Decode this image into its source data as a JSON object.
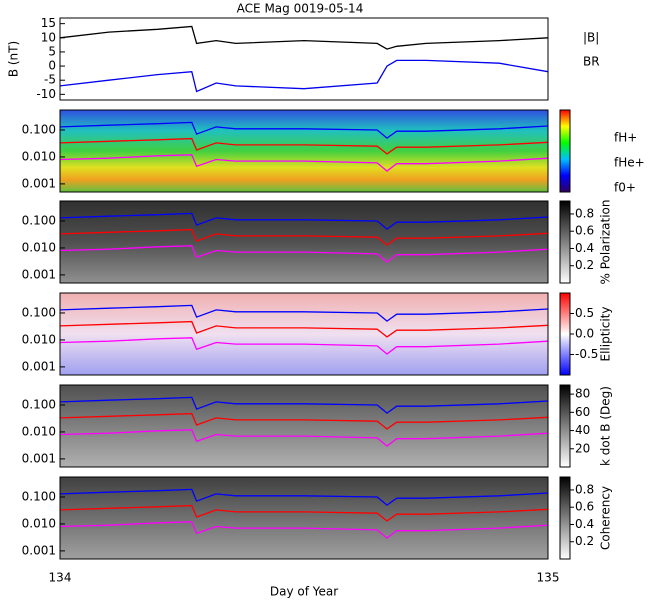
{
  "chart_data": [
    {
      "type": "line",
      "title": "ACE Mag 0019-05-14",
      "y_label": "B (nT)",
      "x": [
        134,
        134.1,
        134.2,
        134.27,
        134.28,
        134.32,
        134.36,
        134.5,
        134.65,
        134.67,
        134.69,
        134.75,
        134.9,
        135
      ],
      "series": [
        {
          "name": "|B|",
          "color": "#000000",
          "values": [
            10,
            12,
            13,
            14,
            8,
            9,
            8,
            9,
            8,
            6,
            7,
            8,
            9,
            10
          ]
        },
        {
          "name": "BR",
          "color": "#0000ee",
          "values": [
            -7,
            -5,
            -3,
            -2,
            -9,
            -6,
            -7,
            -8,
            -6,
            0,
            2,
            2,
            1,
            -2
          ]
        }
      ],
      "xlim": [
        134,
        135
      ],
      "ylim": [
        -12,
        17
      ],
      "yticks": [
        -10,
        -5,
        0,
        5,
        10,
        15
      ]
    },
    {
      "type": "spectrogram",
      "log_y": true,
      "x": [
        134,
        134.1,
        134.2,
        134.27,
        134.28,
        134.32,
        134.36,
        134.5,
        134.65,
        134.67,
        134.69,
        134.75,
        134.9,
        135
      ],
      "series": [
        {
          "name": "fH+",
          "color": "#0000ff",
          "values": [
            0.13,
            0.15,
            0.17,
            0.19,
            0.07,
            0.13,
            0.11,
            0.11,
            0.1,
            0.05,
            0.09,
            0.09,
            0.11,
            0.14
          ]
        },
        {
          "name": "fHe+",
          "color": "#ff0000",
          "values": [
            0.033,
            0.038,
            0.043,
            0.048,
            0.018,
            0.033,
            0.028,
            0.028,
            0.025,
            0.013,
            0.023,
            0.023,
            0.028,
            0.035
          ]
        },
        {
          "name": "f0+",
          "color": "#ff00ff",
          "values": [
            0.008,
            0.009,
            0.011,
            0.012,
            0.0045,
            0.008,
            0.007,
            0.007,
            0.006,
            0.003,
            0.0056,
            0.0056,
            0.007,
            0.009
          ]
        }
      ],
      "xlim": [
        134,
        135
      ],
      "xticks": [
        134,
        135
      ],
      "x_label": "Day of Year",
      "ylim": [
        0.0005,
        0.55
      ],
      "yticks": [
        0.001,
        {
          "value": 0.01,
          "label": "0.010"
        },
        {
          "value": 0.1,
          "label": "0.100"
        }
      ],
      "panels": [
        {},
        {
          "colorbar_label": "% Polarization",
          "zlim": [
            0,
            0.95
          ],
          "zticks": [
            0.2,
            0.4,
            0.6,
            0.8
          ]
        },
        {
          "colorbar_label": "Ellipticity",
          "zlim": [
            -1,
            1
          ],
          "zticks": [
            -0.5,
            {
              "value": 0,
              "label": "0.0"
            },
            0.5
          ]
        },
        {
          "colorbar_label": "k dot B (Deg)",
          "zlim": [
            0,
            90
          ],
          "zticks": [
            20,
            40,
            60,
            80
          ]
        },
        {
          "colorbar_label": "Coherency",
          "zlim": [
            0,
            0.95
          ],
          "zticks": [
            0.2,
            0.4,
            0.6,
            0.8
          ]
        }
      ]
    }
  ]
}
